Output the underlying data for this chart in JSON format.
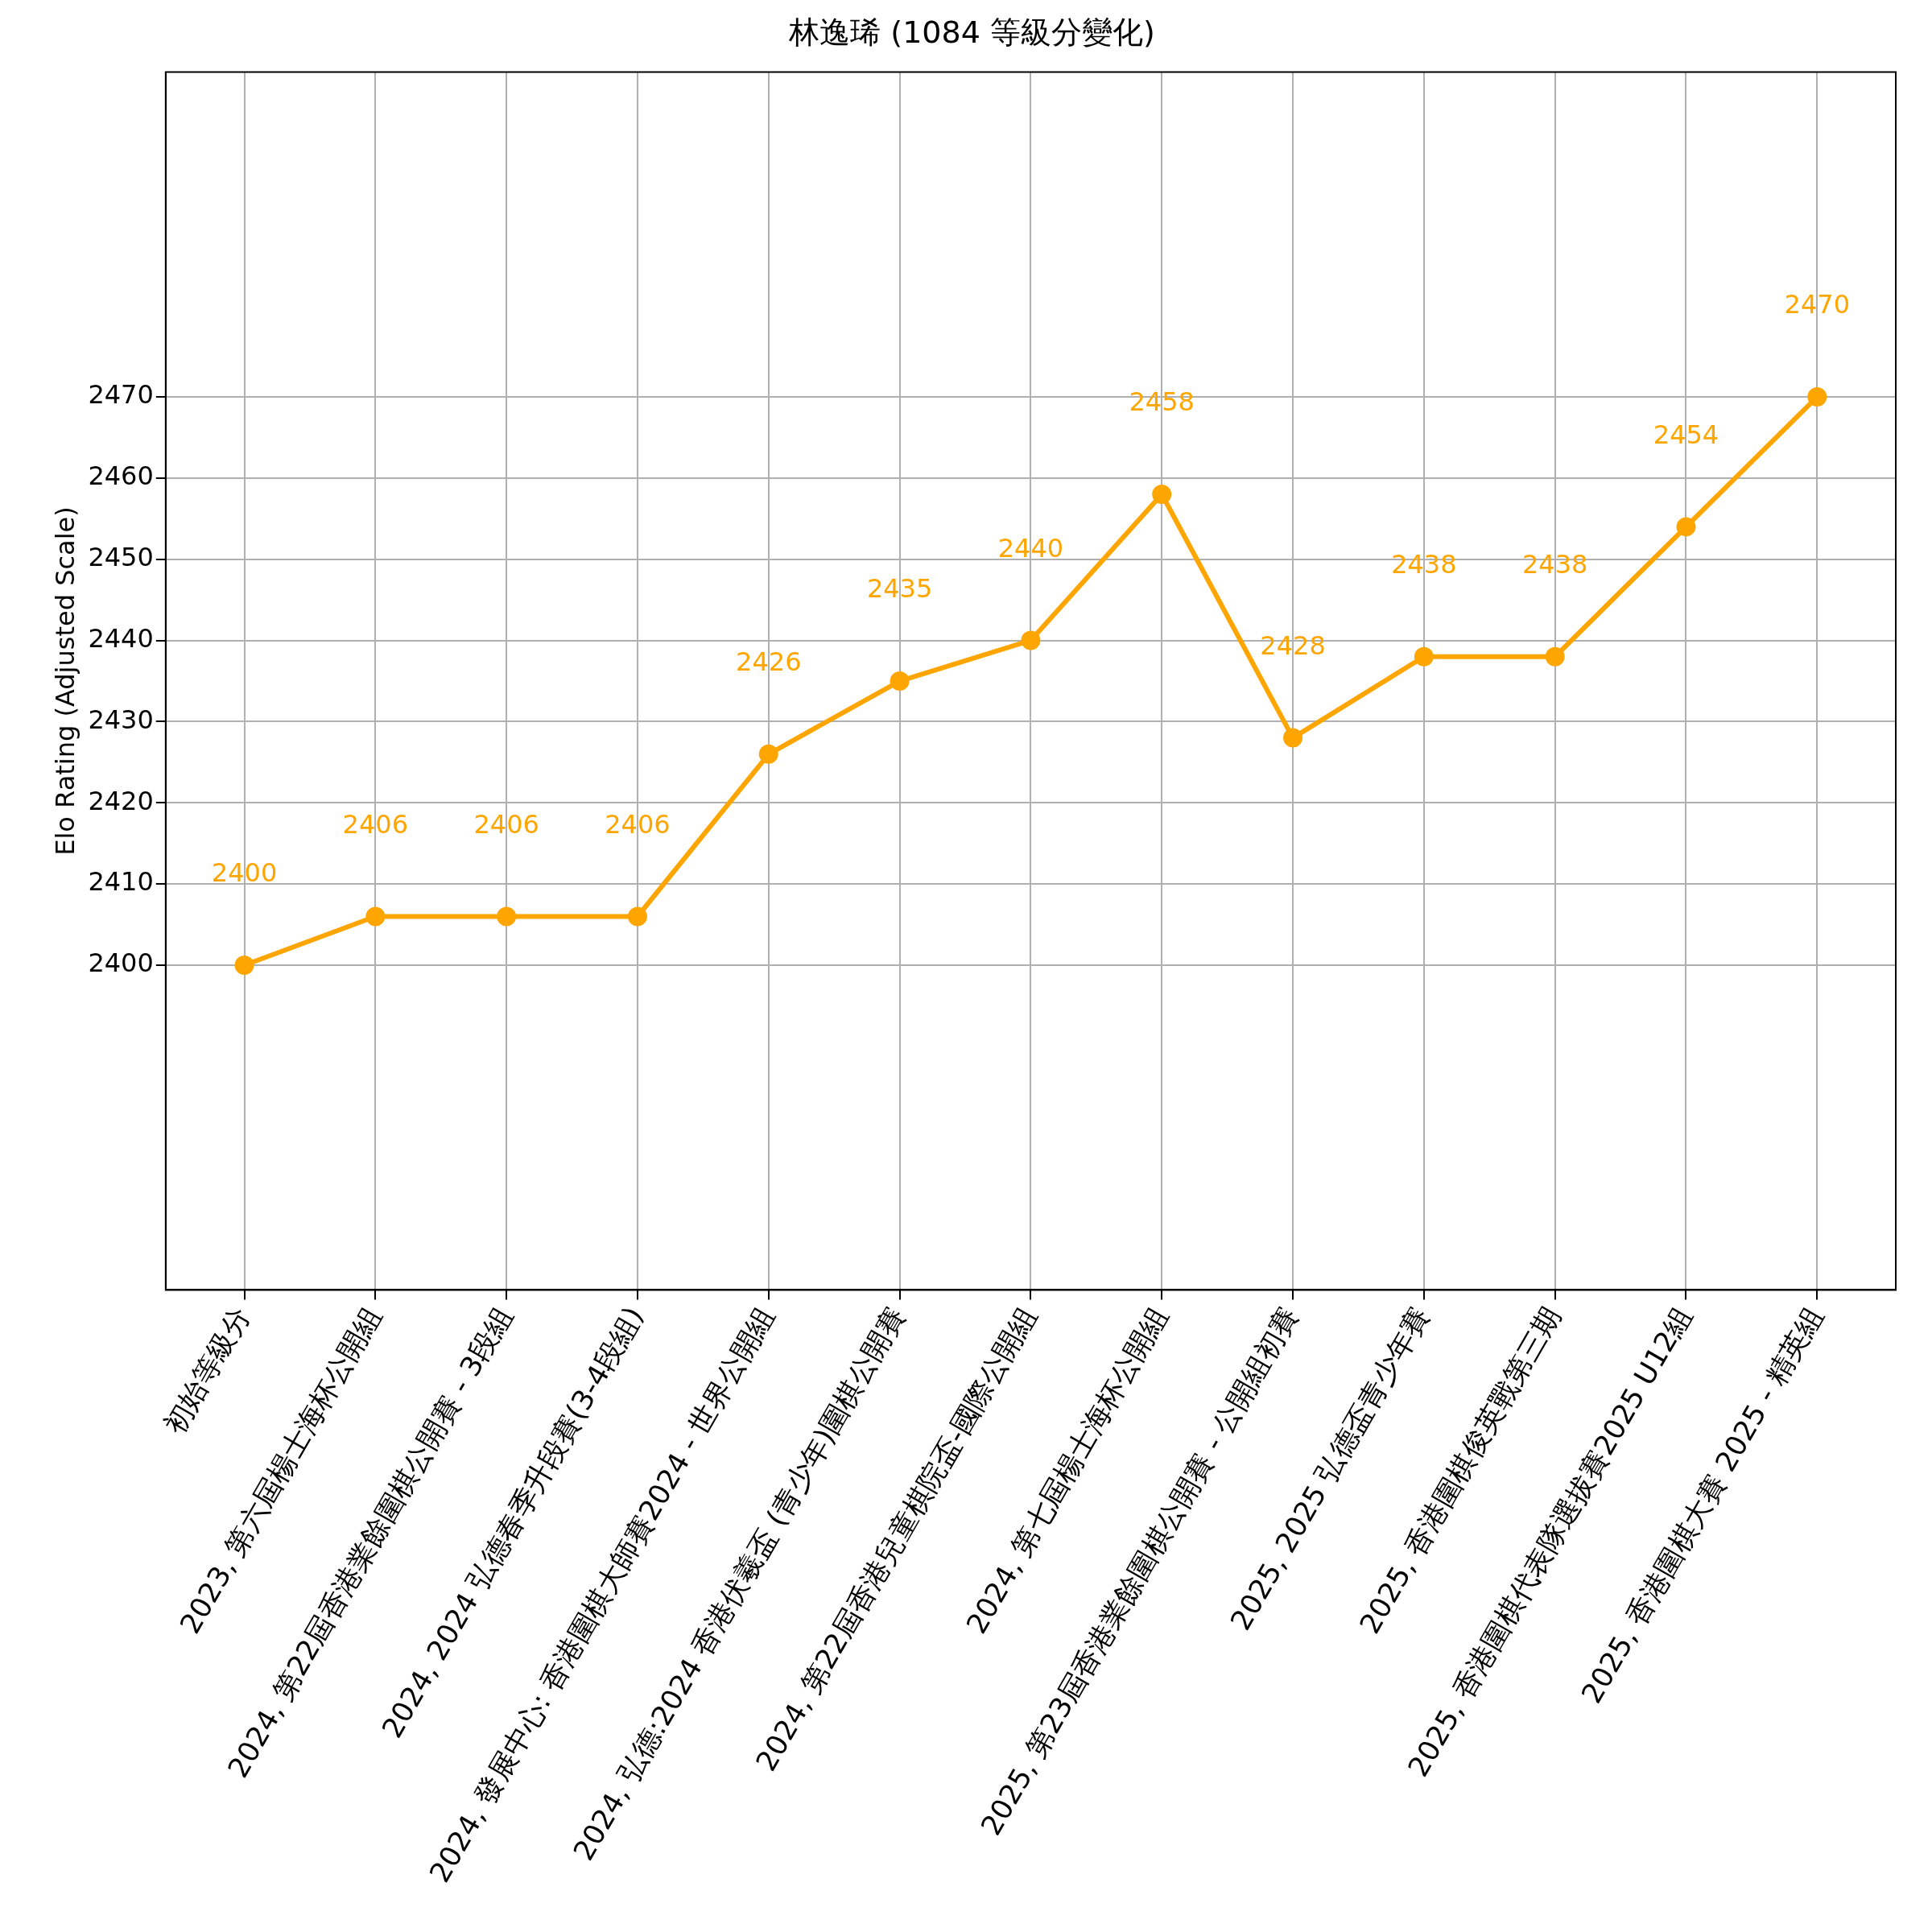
{
  "chart_data": {
    "type": "line",
    "title": "林逸琋 (1084 等級分變化)",
    "ylabel": "Elo Rating (Adjusted Scale)",
    "categories": [
      "初始等級分",
      "2023, 第六屆楊士海杯公開組",
      "2024, 第22屆香港業餘圍棋公開賽 - 3段組",
      "2024, 2024 弘德春季升段賽(3-4段組)",
      "2024, 發展中心: 香港圍棋大師賽2024 - 世界公開組",
      "2024, 弘德:2024 香港伏羲盃 (青少年)圍棋公開賽",
      "2024, 第22屆香港兒童棋院盃-國際公開組",
      "2024, 第七屆楊士海杯公開組",
      "2025, 第23屆香港業餘圍棋公開賽 - 公開組初賽",
      "2025, 2025 弘德盃青少年賽",
      "2025, 香港圍棋俊英戰第三期",
      "2025, 香港圍棋代表隊選拔賽2025 U12組",
      "2025, 香港圍棋大賽 2025 - 精英組"
    ],
    "series": [
      {
        "color": "#ffa500",
        "values": [
          2400,
          2406,
          2406,
          2406,
          2426,
          2435,
          2440,
          2458,
          2428,
          2438,
          2438,
          2454,
          2470
        ]
      }
    ],
    "ylim": [
      2360,
      2510
    ],
    "yticks": [
      2400,
      2410,
      2420,
      2430,
      2440,
      2450,
      2460,
      2470
    ],
    "grid": true,
    "marker": "circle",
    "line_style": "solid",
    "data_labels": true
  }
}
